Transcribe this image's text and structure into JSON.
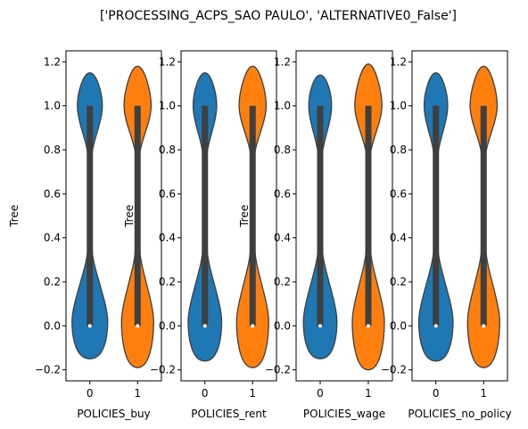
{
  "figure_title": "['PROCESSING_ACPS_SAO PAULO', 'ALTERNATIVE0_False']",
  "colors": {
    "series0": "#1f77b4",
    "series1": "#ff7f0e",
    "box": "#3f3f3f",
    "median": "#ffffff"
  },
  "chart_data": [
    {
      "type": "violin",
      "xlabel": "POLICIES_buy",
      "ylabel": "Tree",
      "categories": [
        "0",
        "1"
      ],
      "ylim": [
        -0.25,
        1.25
      ],
      "yticks": [
        -0.2,
        0.0,
        0.2,
        0.4,
        0.6,
        0.8,
        1.0,
        1.2
      ],
      "ytick_labels": [
        "−0.2",
        "0.0",
        "0.2",
        "0.4",
        "0.6",
        "0.8",
        "1.0",
        "1.2"
      ],
      "violins": [
        {
          "category": "0",
          "min": -0.15,
          "max": 1.15,
          "q1": 0.0,
          "median": 0.0,
          "q3": 1.0,
          "low_mode_width": 0.5,
          "high_mode_width": 0.35
        },
        {
          "category": "1",
          "min": -0.19,
          "max": 1.18,
          "q1": 0.0,
          "median": 0.0,
          "q3": 1.0,
          "low_mode_width": 0.45,
          "high_mode_width": 0.38
        }
      ]
    },
    {
      "type": "violin",
      "xlabel": "POLICIES_rent",
      "ylabel": "Tree",
      "categories": [
        "0",
        "1"
      ],
      "ylim": [
        -0.25,
        1.25
      ],
      "yticks": [
        -0.2,
        0.0,
        0.2,
        0.4,
        0.6,
        0.8,
        1.0,
        1.2
      ],
      "ytick_labels": [
        "−0.2",
        "0.0",
        "0.2",
        "0.4",
        "0.6",
        "0.8",
        "1.0",
        "1.2"
      ],
      "violins": [
        {
          "category": "0",
          "min": -0.16,
          "max": 1.15,
          "q1": 0.0,
          "median": 0.0,
          "q3": 1.0,
          "low_mode_width": 0.47,
          "high_mode_width": 0.33
        },
        {
          "category": "1",
          "min": -0.19,
          "max": 1.18,
          "q1": 0.0,
          "median": 0.0,
          "q3": 1.0,
          "low_mode_width": 0.45,
          "high_mode_width": 0.38
        }
      ]
    },
    {
      "type": "violin",
      "xlabel": "POLICIES_wage",
      "ylabel": "Tree",
      "categories": [
        "0",
        "1"
      ],
      "ylim": [
        -0.25,
        1.25
      ],
      "yticks": [
        -0.2,
        0.0,
        0.2,
        0.4,
        0.6,
        0.8,
        1.0,
        1.2
      ],
      "ytick_labels": [
        "−0.2",
        "0.0",
        "0.2",
        "0.4",
        "0.6",
        "0.8",
        "1.0",
        "1.2"
      ],
      "violins": [
        {
          "category": "0",
          "min": -0.15,
          "max": 1.14,
          "q1": 0.0,
          "median": 0.0,
          "q3": 1.0,
          "low_mode_width": 0.47,
          "high_mode_width": 0.32
        },
        {
          "category": "1",
          "min": -0.2,
          "max": 1.19,
          "q1": 0.0,
          "median": 0.0,
          "q3": 1.0,
          "low_mode_width": 0.45,
          "high_mode_width": 0.38
        }
      ]
    },
    {
      "type": "violin",
      "xlabel": "POLICIES_no_policy",
      "ylabel": "",
      "categories": [
        "0",
        "1"
      ],
      "ylim": [
        -0.25,
        1.25
      ],
      "yticks": [
        -0.2,
        0.0,
        0.2,
        0.4,
        0.6,
        0.8,
        1.0,
        1.2
      ],
      "ytick_labels": [
        "−0.2",
        "0.0",
        "0.2",
        "0.4",
        "0.6",
        "0.8",
        "1.0",
        "1.2"
      ],
      "violins": [
        {
          "category": "0",
          "min": -0.16,
          "max": 1.15,
          "q1": 0.0,
          "median": 0.0,
          "q3": 1.0,
          "low_mode_width": 0.48,
          "high_mode_width": 0.33
        },
        {
          "category": "1",
          "min": -0.19,
          "max": 1.18,
          "q1": 0.0,
          "median": 0.0,
          "q3": 1.0,
          "low_mode_width": 0.45,
          "high_mode_width": 0.38
        }
      ]
    }
  ]
}
